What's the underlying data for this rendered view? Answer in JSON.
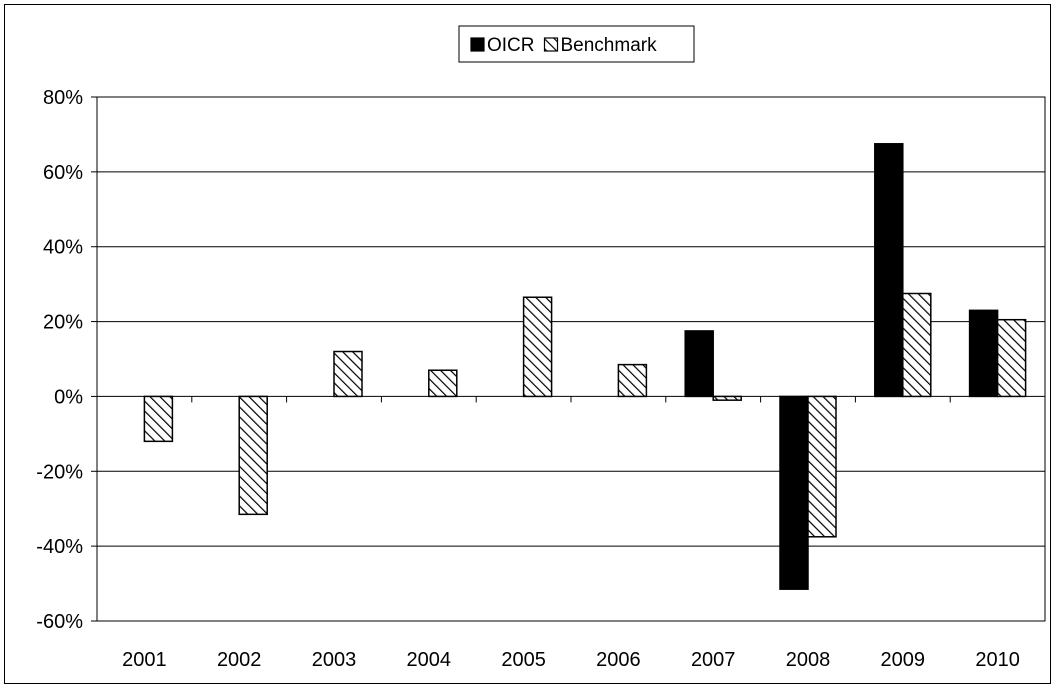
{
  "chart_data": {
    "type": "bar",
    "categories": [
      "2001",
      "2002",
      "2003",
      "2004",
      "2005",
      "2006",
      "2007",
      "2008",
      "2009",
      "2010"
    ],
    "series": [
      {
        "name": "OICR",
        "color": "#000000",
        "pattern": "solid",
        "values": [
          null,
          null,
          null,
          null,
          null,
          null,
          17.5,
          -51.5,
          67.5,
          23
        ]
      },
      {
        "name": "Benchmark",
        "color": "#000000",
        "pattern": "diagonal-hatch",
        "values": [
          -12,
          -31.5,
          12,
          7,
          26.5,
          8.5,
          -1,
          -37.5,
          27.5,
          20.5
        ]
      }
    ],
    "ylim": [
      -60,
      80
    ],
    "yticks": [
      -60,
      -40,
      -20,
      0,
      20,
      40,
      60,
      80
    ],
    "ytick_labels": [
      "-60%",
      "-40%",
      "-20%",
      "0%",
      "20%",
      "40%",
      "60%",
      "80%"
    ],
    "y_unit": "%",
    "title": "",
    "xlabel": "",
    "ylabel": "",
    "grid": "horizontal",
    "legend": "top-center"
  }
}
